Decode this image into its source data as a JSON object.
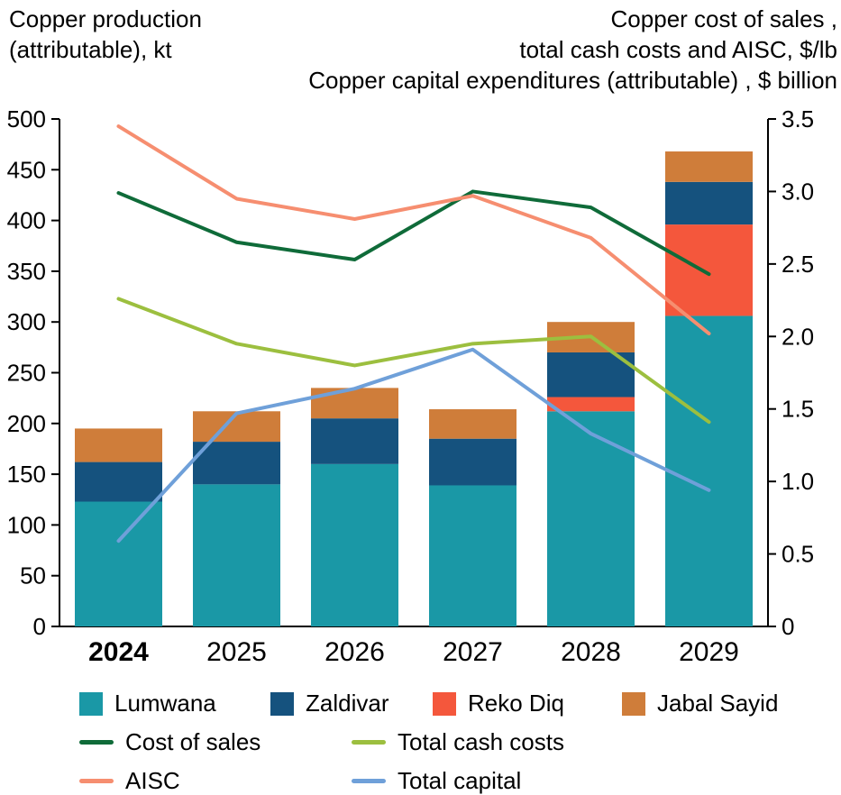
{
  "titles": {
    "left": [
      "Copper production",
      "(attributable), kt"
    ],
    "right": [
      "Copper cost of sales ,",
      "total cash costs  and AISC, $/lb",
      "Copper capital expenditures (attributable) , $ billion"
    ]
  },
  "chart_data": {
    "type": "bar+line",
    "title": "Copper production (attributable), kt vs copper costs ($/lb) and capital expenditures ($ billion)",
    "categories": [
      "2024",
      "2025",
      "2026",
      "2027",
      "2028",
      "2029"
    ],
    "bold_category": "2024",
    "grid": false,
    "legend_position": "bottom",
    "left_axis": {
      "label": "Copper production (attributable), kt",
      "min": 0,
      "max": 500,
      "ticks": [
        0,
        50,
        100,
        150,
        200,
        250,
        300,
        350,
        400,
        450,
        500
      ]
    },
    "right_axis": {
      "label": "Copper cost of sales, total cash costs and AISC, $/lb; Copper capital expenditures (attributable), $ billion",
      "min": 0,
      "max": 3.5,
      "ticks": [
        0,
        0.5,
        1,
        1.5,
        2,
        2.5,
        3,
        3.5
      ],
      "tick_labels": [
        "0",
        "0.5",
        "1.0",
        "1.5",
        "2.0",
        "2.5",
        "3.0",
        "3.5"
      ]
    },
    "bar_series": [
      {
        "name": "Lumwana",
        "color": "#1a98a6",
        "axis": "left",
        "values": [
          123,
          140,
          160,
          139,
          212,
          306
        ]
      },
      {
        "name": "Reko Diq",
        "color": "#f4573c",
        "axis": "left",
        "values": [
          0,
          0,
          0,
          0,
          14,
          90
        ]
      },
      {
        "name": "Zaldivar",
        "color": "#15527e",
        "axis": "left",
        "values": [
          39,
          42,
          45,
          46,
          44,
          42
        ]
      },
      {
        "name": "Jabal Sayid",
        "color": "#cf7d3a",
        "axis": "left",
        "values": [
          33,
          30,
          30,
          29,
          30,
          30
        ]
      }
    ],
    "line_series": [
      {
        "name": "Cost of sales",
        "color": "#0f6b39",
        "axis": "right",
        "values": [
          2.99,
          2.65,
          2.53,
          3.0,
          2.89,
          2.43
        ]
      },
      {
        "name": "Total cash costs",
        "color": "#9cbf3f",
        "axis": "right",
        "values": [
          2.26,
          1.95,
          1.8,
          1.95,
          2.0,
          1.41
        ]
      },
      {
        "name": "AISC",
        "color": "#f68e70",
        "axis": "right",
        "values": [
          3.45,
          2.95,
          2.81,
          2.97,
          2.68,
          2.02
        ]
      },
      {
        "name": "Total capital",
        "color": "#6fa0d9",
        "axis": "right",
        "values": [
          0.59,
          1.47,
          1.64,
          1.91,
          1.33,
          0.94
        ]
      }
    ]
  },
  "legend": {
    "bars": [
      {
        "label": "Lumwana",
        "color": "#1a98a6"
      },
      {
        "label": "Zaldivar",
        "color": "#15527e"
      },
      {
        "label": "Reko Diq",
        "color": "#f4573c"
      },
      {
        "label": "Jabal Sayid",
        "color": "#cf7d3a"
      }
    ],
    "lines": [
      {
        "label": "Cost of sales",
        "color": "#0f6b39"
      },
      {
        "label": "Total cash costs",
        "color": "#9cbf3f"
      },
      {
        "label": "AISC",
        "color": "#f68e70"
      },
      {
        "label": "Total capital",
        "color": "#6fa0d9"
      }
    ]
  }
}
